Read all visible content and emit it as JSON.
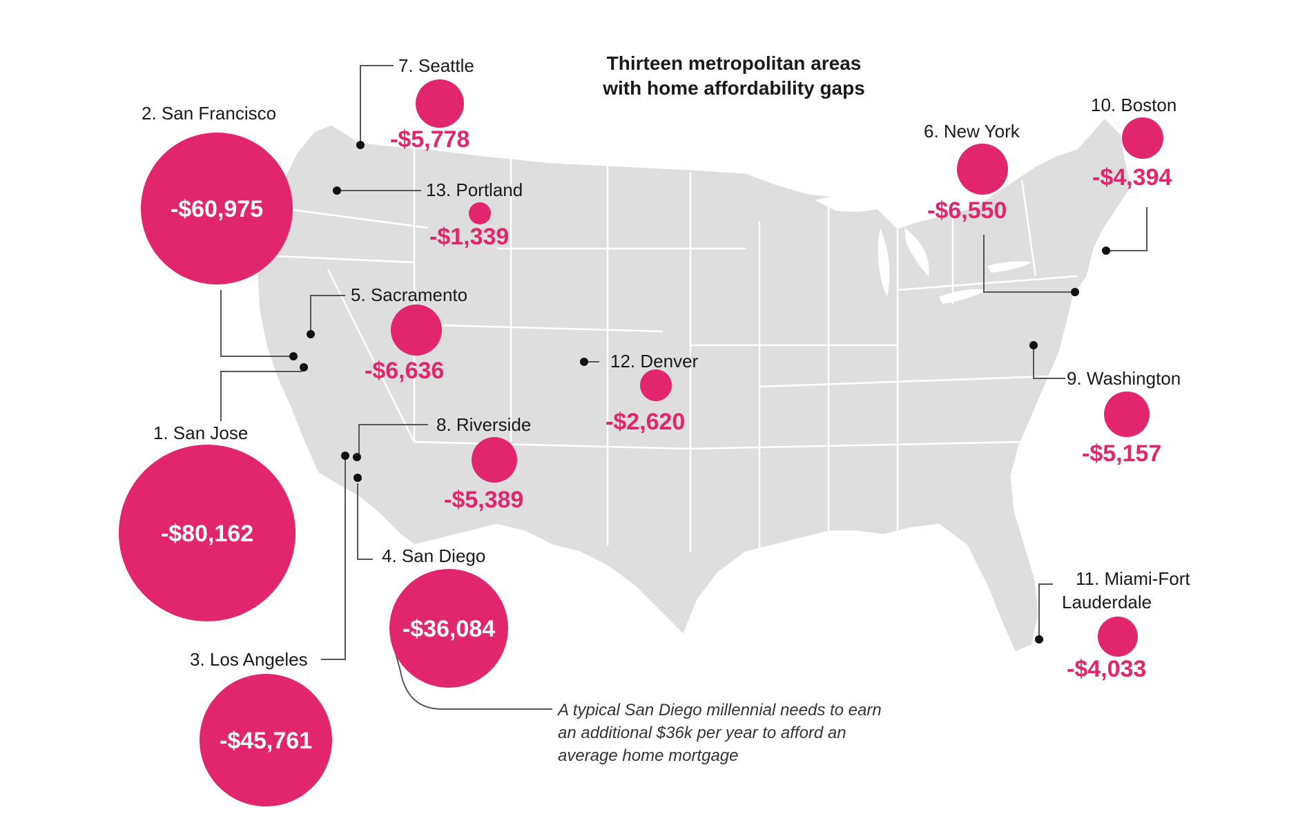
{
  "title": {
    "line1": "Thirteen metropolitan areas",
    "line2": "with home affordability gaps"
  },
  "colors": {
    "accent": "#e2266d",
    "land": "#dedede",
    "border": "#ffffff",
    "text": "#1a1a1a"
  },
  "metros": {
    "san_jose": {
      "label": "1. San Jose",
      "value": "-$80,162",
      "gap": -80162
    },
    "san_francisco": {
      "label": "2. San Francisco",
      "value": "-$60,975",
      "gap": -60975
    },
    "los_angeles": {
      "label": "3. Los Angeles",
      "value": "-$45,761",
      "gap": -45761
    },
    "san_diego": {
      "label": "4. San Diego",
      "value": "-$36,084",
      "gap": -36084
    },
    "sacramento": {
      "label": "5. Sacramento",
      "value": "-$6,636",
      "gap": -6636
    },
    "new_york": {
      "label": "6. New York",
      "value": "-$6,550",
      "gap": -6550
    },
    "seattle": {
      "label": "7. Seattle",
      "value": "-$5,778",
      "gap": -5778
    },
    "riverside": {
      "label": "8. Riverside",
      "value": "-$5,389",
      "gap": -5389
    },
    "washington": {
      "label": "9. Washington",
      "value": "-$5,157",
      "gap": -5157
    },
    "boston": {
      "label": "10. Boston",
      "value": "-$4,394",
      "gap": -4394
    },
    "miami": {
      "label_line1": "11. Miami-Fort",
      "label_line2": "Lauderdale",
      "value": "-$4,033",
      "gap": -4033
    },
    "denver": {
      "label": "12. Denver",
      "value": "-$2,620",
      "gap": -2620
    },
    "portland": {
      "label": "13. Portland",
      "value": "-$1,339",
      "gap": -1339
    }
  },
  "annotation": {
    "line1": "A typical San Diego millennial needs to earn",
    "line2": "an additional $36k per year to afford an",
    "line3": "average home mortgage"
  }
}
